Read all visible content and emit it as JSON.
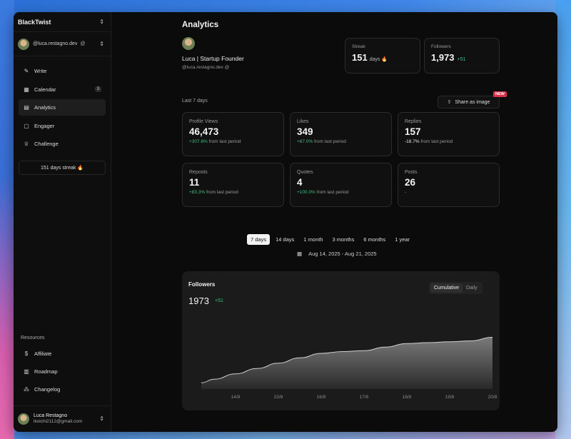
{
  "app": {
    "name": "BlackTwist"
  },
  "account": {
    "handle": "@luca.restagno.dev",
    "platform_icon": "threads-icon"
  },
  "nav": [
    {
      "label": "Write",
      "icon": "pencil-icon",
      "active": false
    },
    {
      "label": "Calendar",
      "icon": "calendar-icon",
      "badge": "3",
      "active": false
    },
    {
      "label": "Analytics",
      "icon": "chart-icon",
      "active": true
    },
    {
      "label": "Engager",
      "icon": "message-icon",
      "active": false
    },
    {
      "label": "Challenge",
      "icon": "trophy-icon",
      "active": false
    }
  ],
  "streak_pill": "151 days streak 🔥",
  "resources": {
    "title": "Resources",
    "items": [
      {
        "label": "Affiliate",
        "icon": "dollar-icon"
      },
      {
        "label": "Roadmap",
        "icon": "map-icon"
      },
      {
        "label": "Changelog",
        "icon": "changelog-icon"
      }
    ]
  },
  "user": {
    "name": "Luca Restagno",
    "email": "lkoichi2112@gmail.com"
  },
  "page": {
    "title": "Analytics",
    "profile_name": "Luca | Startup Founder",
    "profile_handle": "@luca.restagno.dev"
  },
  "top_cards": {
    "streak": {
      "label": "Streak",
      "value": "151",
      "unit": "days 🔥"
    },
    "followers": {
      "label": "Followers",
      "value": "1,973",
      "delta": "+51"
    }
  },
  "period_label": "Last 7 days",
  "share": {
    "label": "Share as image",
    "badge": "NEW"
  },
  "stats": [
    {
      "label": "Profile Views",
      "value": "46,473",
      "delta": "+307.6%",
      "delta_sign": "pos",
      "suffix": " from last period"
    },
    {
      "label": "Likes",
      "value": "349",
      "delta": "+67.0%",
      "delta_sign": "pos",
      "suffix": " from last period"
    },
    {
      "label": "Replies",
      "value": "157",
      "delta": "-18.7%",
      "delta_sign": "neg",
      "suffix": " from last period"
    },
    {
      "label": "Reposts",
      "value": "11",
      "delta": "+83.3%",
      "delta_sign": "pos",
      "suffix": " from last period"
    },
    {
      "label": "Quotes",
      "value": "4",
      "delta": "+100.0%",
      "delta_sign": "pos",
      "suffix": " from last period"
    },
    {
      "label": "Posts",
      "value": "26",
      "delta": "-",
      "delta_sign": "neutral",
      "suffix": ""
    }
  ],
  "ranges": [
    {
      "label": "7 days",
      "active": true
    },
    {
      "label": "14 days",
      "active": false
    },
    {
      "label": "1 month",
      "active": false
    },
    {
      "label": "3 months",
      "active": false
    },
    {
      "label": "6 months",
      "active": false
    },
    {
      "label": "1 year",
      "active": false
    }
  ],
  "date_range": "Aug 14, 2025 - Aug 21, 2025",
  "followers_chart_card": {
    "title": "Followers",
    "value": "1973",
    "delta": "+51",
    "toggle": [
      {
        "label": "Cumulative",
        "active": true
      },
      {
        "label": "Daily",
        "active": false
      }
    ]
  },
  "chart_data": {
    "type": "area",
    "title": "Followers",
    "x": [
      "14/8",
      "15/8",
      "16/8",
      "17/8",
      "18/8",
      "19/8",
      "20/8"
    ],
    "y_points": [
      1922,
      1944,
      1957,
      1961,
      1968,
      1970,
      1973
    ],
    "series": [
      {
        "name": "Followers",
        "x": [
          13.2,
          13.5,
          14,
          14.5,
          15,
          15.5,
          16,
          16.5,
          17,
          17.5,
          18,
          18.5,
          19,
          19.5,
          20
        ],
        "values": [
          1922,
          1926,
          1932,
          1938,
          1944,
          1950,
          1955,
          1957,
          1958,
          1962,
          1966,
          1967,
          1968,
          1969,
          1973
        ]
      }
    ],
    "ylim": [
      1915,
      1975
    ],
    "grid": false,
    "accent": "#ffffff",
    "delta_color": "#3fbf7f"
  }
}
